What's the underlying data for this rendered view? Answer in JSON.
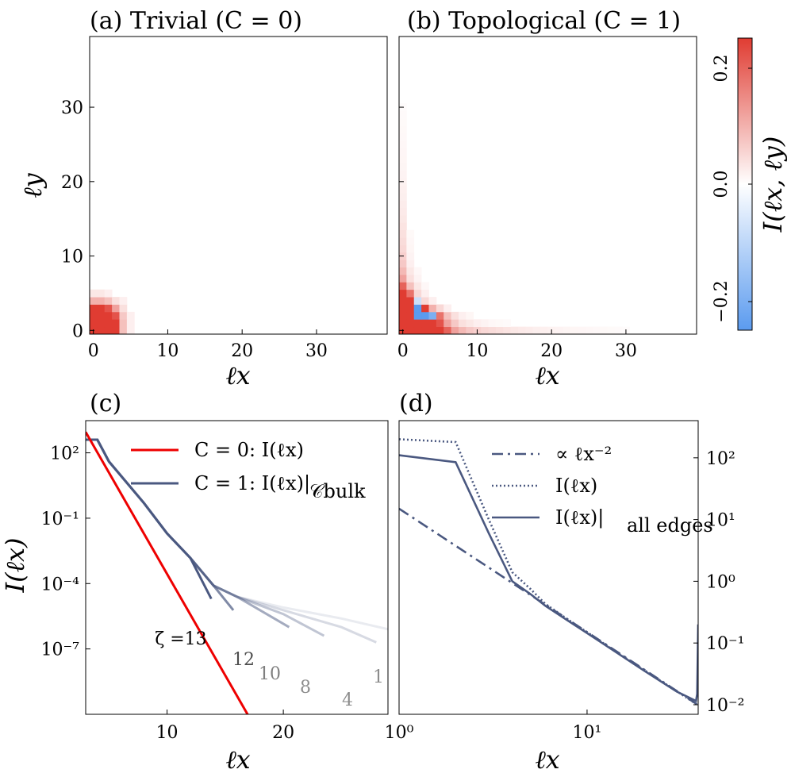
{
  "figure": {
    "panels": [
      {
        "id": "a",
        "title": "(a)  Trivial (C = 0)"
      },
      {
        "id": "b",
        "title": "(b) Topological (C = 1)"
      },
      {
        "id": "c",
        "title": "(c)"
      },
      {
        "id": "d",
        "title": "(d)"
      }
    ],
    "colorbar": {
      "label": "I(ℓx, ℓy)",
      "ticks": [
        "0.2",
        "0.0",
        "−0.2"
      ],
      "range": [
        -0.25,
        0.25
      ],
      "colors": {
        "neg": "#5b9bef",
        "mid": "#ffffff",
        "pos": "#e03c32"
      }
    }
  },
  "chart_data": [
    {
      "type": "heatmap",
      "panel": "a",
      "title": "(a)  Trivial (C = 0)",
      "xlabel": "ℓx",
      "ylabel": "ℓy",
      "xlim": [
        -0.5,
        39.5
      ],
      "ylim": [
        -0.5,
        39.5
      ],
      "xticks": [
        "0",
        "10",
        "20",
        "30"
      ],
      "yticks": [
        "0",
        "10",
        "20",
        "30"
      ],
      "cells": [
        [
          0,
          0,
          0.25
        ],
        [
          1,
          0,
          0.25
        ],
        [
          2,
          0,
          0.25
        ],
        [
          3,
          0,
          0.25
        ],
        [
          4,
          0,
          0.08
        ],
        [
          5,
          0,
          0.02
        ],
        [
          0,
          1,
          0.25
        ],
        [
          1,
          1,
          0.25
        ],
        [
          2,
          1,
          0.25
        ],
        [
          3,
          1,
          0.25
        ],
        [
          4,
          1,
          0.08
        ],
        [
          5,
          1,
          0.02
        ],
        [
          0,
          2,
          0.25
        ],
        [
          1,
          2,
          0.25
        ],
        [
          2,
          2,
          0.25
        ],
        [
          3,
          2,
          0.22
        ],
        [
          4,
          2,
          0.07
        ],
        [
          5,
          2,
          0.02
        ],
        [
          0,
          3,
          0.25
        ],
        [
          1,
          3,
          0.25
        ],
        [
          2,
          3,
          0.22
        ],
        [
          3,
          3,
          0.12
        ],
        [
          4,
          3,
          0.04
        ],
        [
          0,
          4,
          0.1
        ],
        [
          1,
          4,
          0.1
        ],
        [
          2,
          4,
          0.08
        ],
        [
          3,
          4,
          0.04
        ],
        [
          4,
          4,
          0.02
        ],
        [
          0,
          5,
          0.03
        ],
        [
          1,
          5,
          0.03
        ],
        [
          2,
          5,
          0.02
        ]
      ]
    },
    {
      "type": "heatmap",
      "panel": "b",
      "title": "(b) Topological (C = 1)",
      "xlabel": "ℓx",
      "xlim": [
        -0.5,
        39.5
      ],
      "ylim": [
        -0.5,
        39.5
      ],
      "xticks": [
        "0",
        "10",
        "20",
        "30"
      ],
      "cells": [
        [
          0,
          0,
          0.25
        ],
        [
          1,
          0,
          0.25
        ],
        [
          2,
          0,
          0.25
        ],
        [
          3,
          0,
          0.25
        ],
        [
          4,
          0,
          0.25
        ],
        [
          5,
          0,
          0.25
        ],
        [
          6,
          0,
          0.2
        ],
        [
          7,
          0,
          0.12
        ],
        [
          8,
          0,
          0.09
        ],
        [
          9,
          0,
          0.07
        ],
        [
          10,
          0,
          0.06
        ],
        [
          11,
          0,
          0.05
        ],
        [
          12,
          0,
          0.045
        ],
        [
          13,
          0,
          0.04
        ],
        [
          14,
          0,
          0.035
        ],
        [
          15,
          0,
          0.03
        ],
        [
          16,
          0,
          0.027
        ],
        [
          17,
          0,
          0.024
        ],
        [
          18,
          0,
          0.021
        ],
        [
          19,
          0,
          0.019
        ],
        [
          20,
          0,
          0.017
        ],
        [
          21,
          0,
          0.015
        ],
        [
          22,
          0,
          0.013
        ],
        [
          23,
          0,
          0.012
        ],
        [
          24,
          0,
          0.011
        ],
        [
          25,
          0,
          0.01
        ],
        [
          26,
          0,
          0.009
        ],
        [
          27,
          0,
          0.008
        ],
        [
          28,
          0,
          0.007
        ],
        [
          29,
          0,
          0.006
        ],
        [
          30,
          0,
          0.005
        ],
        [
          0,
          1,
          0.25
        ],
        [
          1,
          1,
          0.25
        ],
        [
          2,
          1,
          0.25
        ],
        [
          3,
          1,
          0.25
        ],
        [
          4,
          1,
          0.25
        ],
        [
          5,
          1,
          0.22
        ],
        [
          6,
          1,
          0.12
        ],
        [
          7,
          1,
          0.07
        ],
        [
          8,
          1,
          0.04
        ],
        [
          9,
          1,
          0.03
        ],
        [
          10,
          1,
          0.02
        ],
        [
          11,
          1,
          0.015
        ],
        [
          12,
          1,
          0.01
        ],
        [
          13,
          1,
          0.008
        ],
        [
          14,
          1,
          0.006
        ],
        [
          0,
          2,
          0.25
        ],
        [
          1,
          2,
          0.25
        ],
        [
          2,
          2,
          -0.25
        ],
        [
          3,
          2,
          -0.25
        ],
        [
          4,
          2,
          -0.2
        ],
        [
          5,
          2,
          0.18
        ],
        [
          6,
          2,
          0.08
        ],
        [
          7,
          2,
          0.04
        ],
        [
          8,
          2,
          0.02
        ],
        [
          9,
          2,
          0.012
        ],
        [
          0,
          3,
          0.25
        ],
        [
          1,
          3,
          0.25
        ],
        [
          2,
          3,
          -0.25
        ],
        [
          3,
          3,
          0.25
        ],
        [
          4,
          3,
          0.1
        ],
        [
          5,
          3,
          0.05
        ],
        [
          6,
          3,
          0.02
        ],
        [
          0,
          4,
          0.25
        ],
        [
          1,
          4,
          0.25
        ],
        [
          2,
          4,
          -0.08
        ],
        [
          3,
          4,
          0.05
        ],
        [
          4,
          4,
          0.02
        ],
        [
          0,
          5,
          0.25
        ],
        [
          1,
          5,
          0.18
        ],
        [
          2,
          5,
          0.05
        ],
        [
          3,
          5,
          0.02
        ],
        [
          0,
          6,
          0.2
        ],
        [
          1,
          6,
          0.08
        ],
        [
          2,
          6,
          0.03
        ],
        [
          3,
          6,
          0.01
        ],
        [
          0,
          7,
          0.12
        ],
        [
          1,
          7,
          0.04
        ],
        [
          2,
          7,
          0.015
        ],
        [
          0,
          8,
          0.09
        ],
        [
          1,
          8,
          0.03
        ],
        [
          2,
          8,
          0.01
        ],
        [
          0,
          9,
          0.07
        ],
        [
          1,
          9,
          0.02
        ],
        [
          0,
          10,
          0.06
        ],
        [
          1,
          10,
          0.015
        ],
        [
          0,
          11,
          0.05
        ],
        [
          1,
          11,
          0.012
        ],
        [
          0,
          12,
          0.045
        ],
        [
          1,
          12,
          0.01
        ],
        [
          0,
          13,
          0.04
        ],
        [
          1,
          13,
          0.008
        ],
        [
          0,
          14,
          0.035
        ],
        [
          0,
          15,
          0.03
        ],
        [
          0,
          16,
          0.027
        ],
        [
          0,
          17,
          0.024
        ],
        [
          0,
          18,
          0.021
        ],
        [
          0,
          19,
          0.019
        ],
        [
          0,
          20,
          0.017
        ],
        [
          0,
          21,
          0.015
        ],
        [
          0,
          22,
          0.013
        ],
        [
          0,
          23,
          0.012
        ],
        [
          0,
          24,
          0.011
        ],
        [
          0,
          25,
          0.01
        ],
        [
          0,
          26,
          0.009
        ],
        [
          0,
          27,
          0.008
        ],
        [
          0,
          28,
          0.007
        ],
        [
          0,
          29,
          0.006
        ],
        [
          0,
          30,
          0.005
        ]
      ]
    },
    {
      "type": "line",
      "panel": "c",
      "title": "(c)",
      "xlabel": "ℓx",
      "ylabel": "I(ℓx)",
      "yscale": "log",
      "xlim": [
        3,
        29
      ],
      "ylim": [
        1e-10,
        3000
      ],
      "xticks": [
        "10",
        "20"
      ],
      "yticks": [
        "10^2",
        "10^-1",
        "10^-4",
        "10^-7"
      ],
      "legend": [
        {
          "label": "C = 0:  I(ℓx)",
          "color": "#ee0000"
        },
        {
          "label": "C = 1:  I(ℓx)|",
          "sub": "𝒞bulk",
          "color": "#4a5880"
        }
      ],
      "series": [
        {
          "name": "C = 0",
          "color": "#ee0000",
          "x": [
            3,
            18
          ],
          "y": [
            900,
            1e-11
          ]
        },
        {
          "name": "ζ=1",
          "label": "1",
          "color": "#4a5880",
          "opacity": 0.12,
          "x": [
            3,
            4,
            5,
            8,
            10,
            12,
            14,
            16,
            20,
            25,
            29
          ],
          "y": [
            400,
            400,
            40,
            0.5,
            0.02,
            0.0015,
            8e-05,
            2.5e-05,
            8e-06,
            2.5e-06,
            8e-07
          ]
        },
        {
          "name": "ζ=4",
          "label": "4",
          "color": "#4a5880",
          "opacity": 0.22,
          "x": [
            3,
            4,
            5,
            8,
            10,
            12,
            14,
            16,
            20,
            25,
            28
          ],
          "y": [
            400,
            400,
            40,
            0.5,
            0.02,
            0.0015,
            8e-05,
            2.5e-05,
            6e-06,
            1e-06,
            2e-07
          ]
        },
        {
          "name": "ζ=8",
          "label": "8",
          "color": "#4a5880",
          "opacity": 0.35,
          "x": [
            3,
            4,
            5,
            8,
            10,
            12,
            14,
            16,
            20,
            23.5
          ],
          "y": [
            400,
            400,
            40,
            0.5,
            0.02,
            0.0015,
            8e-05,
            2.5e-05,
            4e-06,
            4e-07
          ]
        },
        {
          "name": "ζ=10",
          "label": "10",
          "color": "#4a5880",
          "opacity": 0.5,
          "x": [
            3,
            4,
            5,
            8,
            10,
            12,
            14,
            16,
            20.5
          ],
          "y": [
            400,
            400,
            40,
            0.5,
            0.02,
            0.0015,
            8e-05,
            2.5e-05,
            1e-06
          ]
        },
        {
          "name": "ζ=12",
          "label": "12",
          "color": "#4a5880",
          "opacity": 0.7,
          "x": [
            3,
            4,
            5,
            8,
            10,
            12,
            14,
            15.7
          ],
          "y": [
            400,
            400,
            40,
            0.5,
            0.02,
            0.0015,
            8e-05,
            6e-06
          ]
        },
        {
          "name": "ζ=13",
          "label": "ζ =13",
          "color": "#4a5880",
          "opacity": 1,
          "x": [
            3,
            4,
            5,
            8,
            10,
            12,
            13.8
          ],
          "y": [
            400,
            400,
            40,
            0.5,
            0.02,
            0.0015,
            2e-05
          ]
        }
      ]
    },
    {
      "type": "line",
      "panel": "d",
      "title": "(d)",
      "xlabel": "ℓx",
      "xscale": "log",
      "yscale": "log",
      "xlim": [
        1,
        39
      ],
      "ylim": [
        0.007,
        400
      ],
      "xticks": [
        "10^0",
        "10^1"
      ],
      "yticks": [
        "10^2",
        "10^1",
        "10^0",
        "10^-1",
        "10^-2"
      ],
      "legend": [
        {
          "label": "∝ ℓx^−2",
          "style": "dashdot",
          "color": "#4a5880"
        },
        {
          "label": "I(ℓx)",
          "style": "dotted",
          "color": "#4a5880"
        },
        {
          "label": "I(ℓx)|",
          "sub": "all edges",
          "style": "solid",
          "color": "#4a5880"
        }
      ],
      "series": [
        {
          "name": "∝ ℓx^−2",
          "style": "dashdot",
          "x": [
            1,
            39
          ],
          "y": [
            15,
            0.0099
          ]
        },
        {
          "name": "I(ℓx)",
          "style": "dotted",
          "x": [
            1,
            2,
            3,
            4,
            5,
            6,
            8,
            10,
            15,
            20,
            30,
            39
          ],
          "y": [
            200,
            180,
            10,
            1.4,
            0.75,
            0.43,
            0.235,
            0.15,
            0.065,
            0.037,
            0.0165,
            0.0098
          ]
        },
        {
          "name": "I(ℓx)|all edges",
          "style": "solid",
          "x": [
            1,
            2,
            3,
            4,
            5,
            6,
            8,
            10,
            15,
            20,
            30,
            38,
            38.5,
            39
          ],
          "y": [
            110,
            85,
            6,
            1.0,
            0.62,
            0.4,
            0.225,
            0.145,
            0.064,
            0.036,
            0.0163,
            0.0115,
            0.015,
            0.2
          ]
        }
      ]
    }
  ]
}
